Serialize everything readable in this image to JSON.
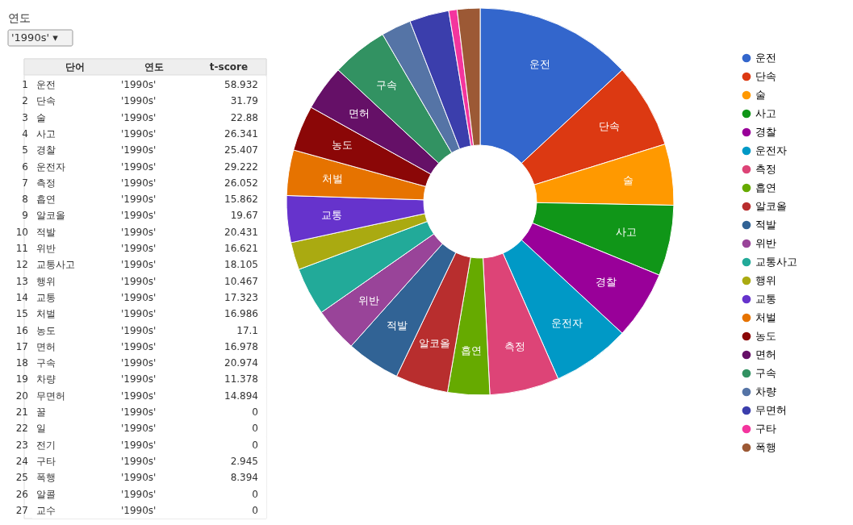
{
  "chart_data": [
    {
      "type": "heatmap",
      "title": "연도",
      "subtitle": "'1990s' ▾",
      "data_labels": true,
      "categories": [
        "단어",
        "연도",
        "t-score"
      ],
      "y_categories": [
        "1",
        "2",
        "3",
        "4",
        "5",
        "6",
        "7",
        "8",
        "9",
        "10",
        "11",
        "12",
        "13",
        "14",
        "15",
        "16",
        "17",
        "18",
        "19",
        "20",
        "21",
        "22",
        "23",
        "24",
        "25",
        "26",
        "27"
      ],
      "cells": [
        [
          null,
          null,
          null
        ],
        [
          null,
          null,
          null
        ],
        [
          null,
          null,
          null
        ],
        [
          null,
          null,
          null
        ],
        [
          null,
          null,
          null
        ],
        [
          null,
          null,
          null
        ],
        [
          null,
          null,
          null
        ],
        [
          null,
          null,
          null
        ],
        [
          null,
          null,
          null
        ],
        [
          null,
          null,
          null
        ],
        [
          null,
          null,
          null
        ],
        [
          null,
          null,
          null
        ],
        [
          null,
          null,
          null
        ],
        [
          null,
          null,
          null
        ],
        [
          null,
          null,
          null
        ],
        [
          null,
          null,
          null
        ],
        [
          null,
          null,
          null
        ],
        [
          null,
          null,
          null
        ],
        [
          null,
          null,
          null
        ],
        [
          null,
          null,
          null
        ],
        [
          null,
          null,
          null
        ],
        [
          null,
          null,
          null
        ],
        [
          null,
          null,
          null
        ],
        [
          null,
          null,
          null
        ],
        [
          null,
          null,
          null
        ],
        [
          null,
          null,
          null
        ],
        [
          null,
          null,
          null
        ]
      ],
      "cell_labels": [
        [
          "운전",
          "'1990s'",
          "58.932"
        ],
        [
          "단속",
          "'1990s'",
          "31.79"
        ],
        [
          "술",
          "'1990s'",
          "22.88"
        ],
        [
          "사고",
          "'1990s'",
          "26.341"
        ],
        [
          "경찰",
          "'1990s'",
          "25.407"
        ],
        [
          "운전자",
          "'1990s'",
          "29.222"
        ],
        [
          "측정",
          "'1990s'",
          "26.052"
        ],
        [
          "흡연",
          "'1990s'",
          "15.862"
        ],
        [
          "알코올",
          "'1990s'",
          "19.67"
        ],
        [
          "적발",
          "'1990s'",
          "20.431"
        ],
        [
          "위반",
          "'1990s'",
          "16.621"
        ],
        [
          "교통사고",
          "'1990s'",
          "18.105"
        ],
        [
          "행위",
          "'1990s'",
          "10.467"
        ],
        [
          "교통",
          "'1990s'",
          "17.323"
        ],
        [
          "처벌",
          "'1990s'",
          "16.986"
        ],
        [
          "농도",
          "'1990s'",
          "17.1"
        ],
        [
          "면허",
          "'1990s'",
          "16.978"
        ],
        [
          "구속",
          "'1990s'",
          "20.974"
        ],
        [
          "차량",
          "'1990s'",
          "11.378"
        ],
        [
          "무면허",
          "'1990s'",
          "14.894"
        ],
        [
          "꿀",
          "'1990s'",
          "0"
        ],
        [
          "일",
          "'1990s'",
          "0"
        ],
        [
          "전기",
          "'1990s'",
          "0"
        ],
        [
          "구타",
          "'1990s'",
          "2.945"
        ],
        [
          "폭행",
          "'1990s'",
          "8.394"
        ],
        [
          "알콜",
          "'1990s'",
          "0"
        ],
        [
          "교수",
          "'1990s'",
          "0"
        ]
      ]
    },
    {
      "type": "donut",
      "categories": [
        "운전",
        "단속",
        "술",
        "사고",
        "경찰",
        "운전자",
        "측정",
        "흡연",
        "알코올",
        "적발",
        "위반",
        "교통사고",
        "행위",
        "교통",
        "처벌",
        "농도",
        "면허",
        "구속",
        "차량",
        "무면허",
        "구타",
        "폭행"
      ],
      "values": [
        13.1,
        7.1,
        5.1,
        5.9,
        5.7,
        6.5,
        5.8,
        3.5,
        4.4,
        4.5,
        3.7,
        4.0,
        2.3,
        3.9,
        3.8,
        3.8,
        3.8,
        4.7,
        2.5,
        3.3,
        0.7,
        1.9
      ],
      "colors": [
        "#3366cc",
        "#dc3912",
        "#ff9900",
        "#109618",
        "#990099",
        "#0099c6",
        "#dd4477",
        "#66aa00",
        "#b82e2e",
        "#316395",
        "#994499",
        "#22aa99",
        "#aaaa11",
        "#6633cc",
        "#e67300",
        "#8b0707",
        "#651067",
        "#329262",
        "#5574a6",
        "#3b3eac",
        "#f4359e",
        "#9c5935"
      ],
      "legend": "right"
    }
  ]
}
